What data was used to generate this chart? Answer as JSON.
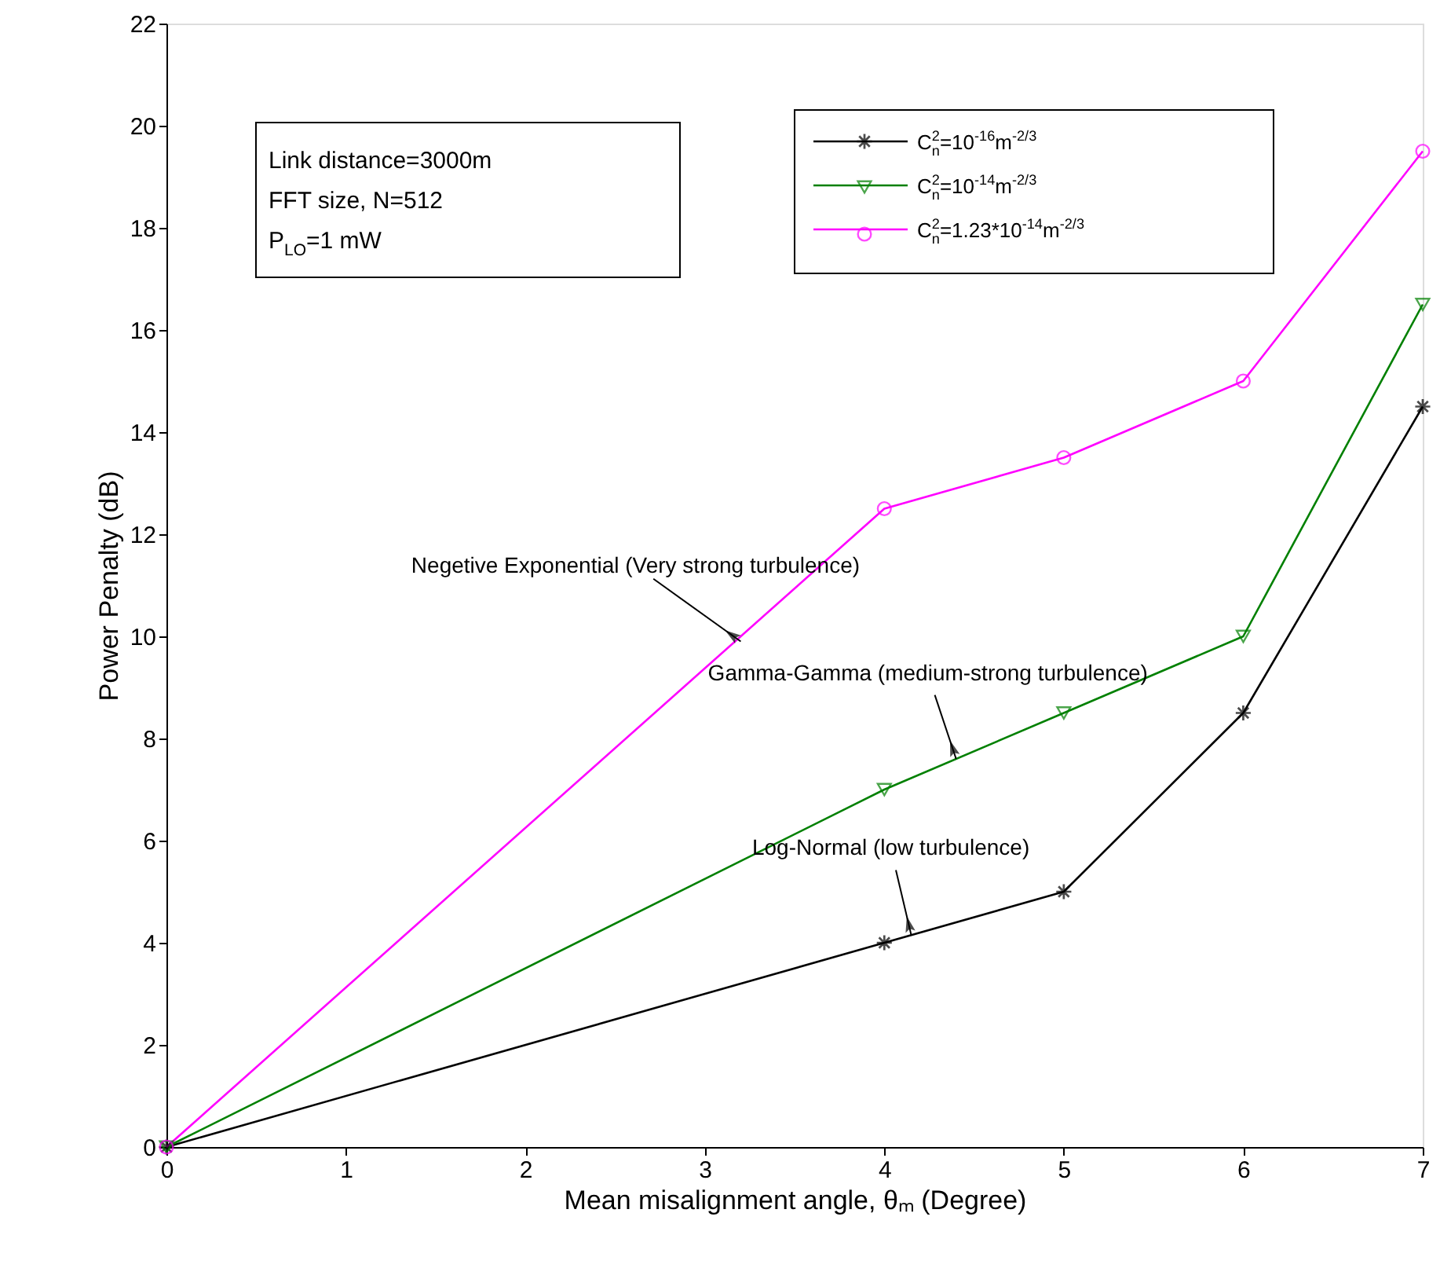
{
  "chart_data": {
    "type": "line",
    "xlabel": "Mean misalignment angle, θₘ (Degree)",
    "ylabel": "Power Penalty (dB)",
    "x": [
      0,
      4,
      5,
      6,
      7
    ],
    "series": [
      {
        "name": "C$_{n}$$^{2}$=10$^{-16}$m$^{-2/3}$",
        "color": "#000000",
        "marker": "star",
        "values": [
          0,
          4,
          5,
          8.5,
          14.5
        ]
      },
      {
        "name": "C$_{n}$$^{2}$=10$^{-14}$m$^{-2/3}$",
        "color": "#008000",
        "marker": "triangle",
        "values": [
          0,
          7,
          8.5,
          10,
          16.5
        ]
      },
      {
        "name": "C$_{n}$$^{2}$=1.23*10$^{-14}$m$^{-2/3}$",
        "color": "#ff00ff",
        "marker": "circle",
        "values": [
          0,
          12.5,
          13.5,
          15,
          19.5
        ]
      }
    ],
    "xlim": [
      0,
      7
    ],
    "xticks": [
      0,
      1,
      2,
      3,
      4,
      5,
      6,
      7
    ],
    "ylim": [
      0,
      22
    ],
    "yticks": [
      0,
      2,
      4,
      6,
      8,
      10,
      12,
      14,
      16,
      18,
      20,
      22
    ],
    "grid": false,
    "legend": "top right",
    "line_style": "solid",
    "annotations": [
      "Link distance=3000m",
      "FFT size, N=512",
      "P$_{LO}$=1 mW",
      {
        "text": "Negetive Exponential (Very strong turbulence)",
        "x": 3.2,
        "y": 9.9
      },
      {
        "text": "Gamma-Gamma (medium-strong turbulence)",
        "x": 4.4,
        "y": 7.6
      },
      {
        "text": "Log-Normal (low turbulence)",
        "x": 4.15,
        "y": 4.15
      }
    ]
  }
}
